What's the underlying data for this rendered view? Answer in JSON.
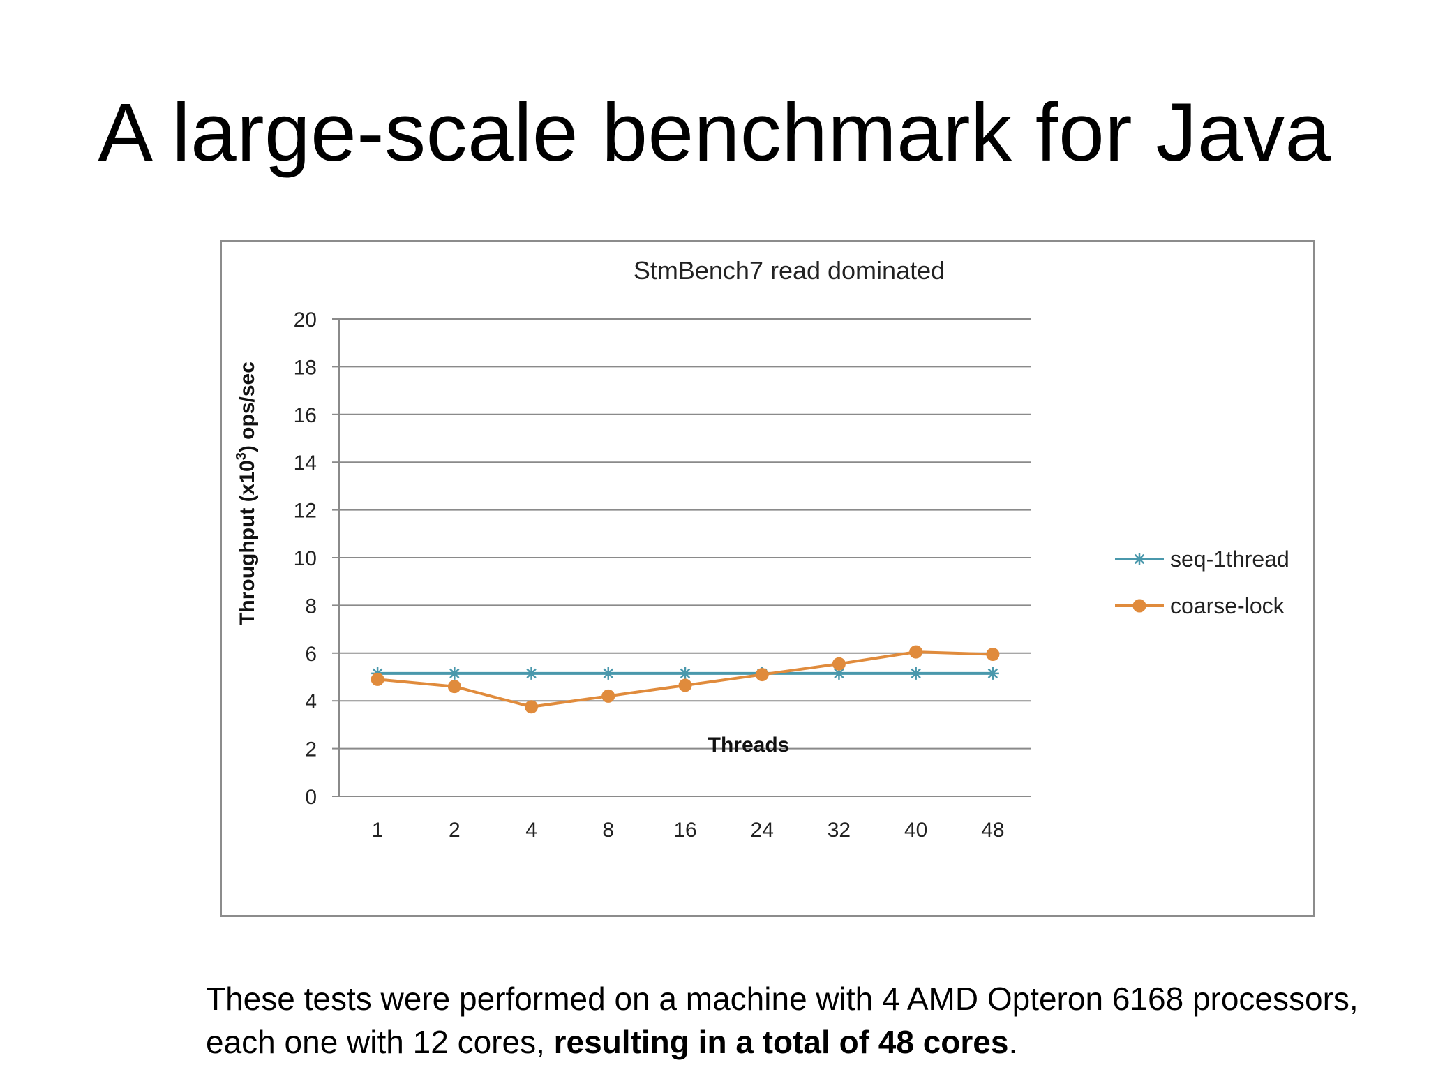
{
  "slide": {
    "title": "A large-scale benchmark for Java",
    "caption_plain": "These tests were performed on a machine with 4 AMD Opteron 6168 processors, each one with 12 cores, ",
    "caption_bold": "resulting in a total of 48 cores",
    "caption_end": "."
  },
  "chart_data": {
    "type": "line",
    "title": "StmBench7 read dominated",
    "xlabel": "Threads",
    "ylabel": "Throughput (x10",
    "ylabel_sup": "3",
    "ylabel_end": ") ops/sec",
    "categories": [
      "1",
      "2",
      "4",
      "8",
      "16",
      "24",
      "32",
      "40",
      "48"
    ],
    "ylim": [
      0,
      20
    ],
    "yticks": [
      0,
      2,
      4,
      6,
      8,
      10,
      12,
      14,
      16,
      18,
      20
    ],
    "grid": true,
    "legend_position": "right",
    "series": [
      {
        "name": "seq-1thread",
        "color": "#4a98ac",
        "marker": "asterisk",
        "values": [
          5.15,
          5.15,
          5.15,
          5.15,
          5.15,
          5.15,
          5.15,
          5.15,
          5.15
        ]
      },
      {
        "name": "coarse-lock",
        "color": "#e08b3c",
        "marker": "circle",
        "values": [
          4.9,
          4.6,
          3.75,
          4.2,
          4.65,
          5.1,
          5.55,
          6.05,
          5.95
        ]
      }
    ]
  }
}
